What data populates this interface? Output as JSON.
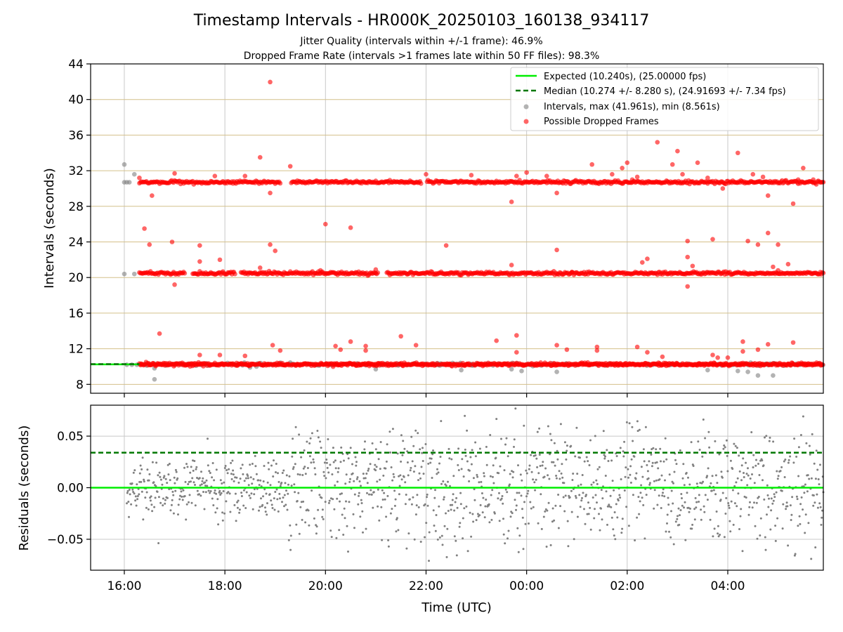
{
  "title": "Timestamp Intervals - HR000K_20250103_160138_934117",
  "subtitle_1": "Jitter Quality (intervals within +/-1 frame): 46.9%",
  "subtitle_2": "Dropped Frame Rate (intervals >1 frames late within 50 FF files): 98.3%",
  "colors": {
    "expected": "#00ee00",
    "median": "#007700",
    "intervals": "#808080",
    "dropped": "#ff0000",
    "gridline_intervals": "#d4c08a",
    "gridline_residuals": "#c8c8c8"
  },
  "chart_data": [
    {
      "type": "scatter",
      "panel": "intervals",
      "ylabel": "Intervals (seconds)",
      "ylim": [
        7,
        44
      ],
      "xlim_hours": [
        15.33,
        29.9
      ],
      "y_ticks": [
        "8",
        "12",
        "16",
        "20",
        "24",
        "28",
        "32",
        "36",
        "40",
        "44"
      ],
      "grid": "on",
      "legend_position": "top-right",
      "legend": [
        "Expected (10.240s), (25.00000 fps)",
        "Median (10.274 +/- 8.280 s), (24.91693 +/- 7.34 fps)",
        "Intervals, max (41.961s), min (8.561s)",
        "Possible Dropped Frames"
      ],
      "expected_value": 10.24,
      "median_value": 10.274,
      "bands": [
        10.24,
        20.48,
        30.72
      ],
      "series": [
        {
          "name": "Intervals, max (41.961s), min (8.561s)",
          "points": [
            [
              16.0,
              32.7
            ],
            [
              16.0,
              30.7
            ],
            [
              16.05,
              30.7
            ],
            [
              16.1,
              30.7
            ],
            [
              16.2,
              31.6
            ],
            [
              16.0,
              20.4
            ],
            [
              16.2,
              20.4
            ],
            [
              16.05,
              10.2
            ],
            [
              16.15,
              10.2
            ],
            [
              16.25,
              10.2
            ],
            [
              16.6,
              8.56
            ],
            [
              16.6,
              9.8
            ],
            [
              18.5,
              9.9
            ],
            [
              21.0,
              9.7
            ],
            [
              22.7,
              9.6
            ],
            [
              23.7,
              9.7
            ],
            [
              23.9,
              9.5
            ],
            [
              24.6,
              9.4
            ],
            [
              27.6,
              9.6
            ],
            [
              28.2,
              9.5
            ],
            [
              28.4,
              9.4
            ],
            [
              28.6,
              9.0
            ],
            [
              28.9,
              9.0
            ],
            [
              29.85,
              10.2
            ]
          ]
        },
        {
          "name": "Possible Dropped Frames",
          "points": [
            [
              16.3,
              31.2
            ],
            [
              16.4,
              25.5
            ],
            [
              16.5,
              23.7
            ],
            [
              16.55,
              29.2
            ],
            [
              16.7,
              13.7
            ],
            [
              16.95,
              24.0
            ],
            [
              17.0,
              19.2
            ],
            [
              17.0,
              31.7
            ],
            [
              17.5,
              23.6
            ],
            [
              17.5,
              21.8
            ],
            [
              17.5,
              11.3
            ],
            [
              17.9,
              22.0
            ],
            [
              17.9,
              11.3
            ],
            [
              17.8,
              31.4
            ],
            [
              18.4,
              31.4
            ],
            [
              18.4,
              11.2
            ],
            [
              18.7,
              33.5
            ],
            [
              18.7,
              21.1
            ],
            [
              18.9,
              41.96
            ],
            [
              18.9,
              29.5
            ],
            [
              18.9,
              23.7
            ],
            [
              18.95,
              12.4
            ],
            [
              19.0,
              23.0
            ],
            [
              19.1,
              11.8
            ],
            [
              19.3,
              32.5
            ],
            [
              19.9,
              20.8
            ],
            [
              20.0,
              26.0
            ],
            [
              20.2,
              12.3
            ],
            [
              20.3,
              11.9
            ],
            [
              20.5,
              25.6
            ],
            [
              20.5,
              12.8
            ],
            [
              20.8,
              12.3
            ],
            [
              20.8,
              11.8
            ],
            [
              21.0,
              20.9
            ],
            [
              21.5,
              13.4
            ],
            [
              21.8,
              12.4
            ],
            [
              22.0,
              31.6
            ],
            [
              22.4,
              23.6
            ],
            [
              22.9,
              31.5
            ],
            [
              23.4,
              12.9
            ],
            [
              23.7,
              28.5
            ],
            [
              23.7,
              21.4
            ],
            [
              23.8,
              31.4
            ],
            [
              23.8,
              13.5
            ],
            [
              23.8,
              11.6
            ],
            [
              24.0,
              31.8
            ],
            [
              24.4,
              31.4
            ],
            [
              24.6,
              29.5
            ],
            [
              24.6,
              23.1
            ],
            [
              24.6,
              12.4
            ],
            [
              24.8,
              11.9
            ],
            [
              24.9,
              20.6
            ],
            [
              25.3,
              32.7
            ],
            [
              25.4,
              12.2
            ],
            [
              25.4,
              11.8
            ],
            [
              25.7,
              31.6
            ],
            [
              25.9,
              32.3
            ],
            [
              26.0,
              32.9
            ],
            [
              26.1,
              31.0
            ],
            [
              26.2,
              12.2
            ],
            [
              26.2,
              31.3
            ],
            [
              26.3,
              21.7
            ],
            [
              26.4,
              22.1
            ],
            [
              26.4,
              11.6
            ],
            [
              26.6,
              35.2
            ],
            [
              26.7,
              11.1
            ],
            [
              26.9,
              32.7
            ],
            [
              27.0,
              34.2
            ],
            [
              27.1,
              31.6
            ],
            [
              27.2,
              24.1
            ],
            [
              27.2,
              22.3
            ],
            [
              27.2,
              19.0
            ],
            [
              27.3,
              21.3
            ],
            [
              27.4,
              32.9
            ],
            [
              27.6,
              31.2
            ],
            [
              27.7,
              24.3
            ],
            [
              27.7,
              11.3
            ],
            [
              27.8,
              11.0
            ],
            [
              27.9,
              30.0
            ],
            [
              28.0,
              11.0
            ],
            [
              28.2,
              34.0
            ],
            [
              28.3,
              12.8
            ],
            [
              28.3,
              11.7
            ],
            [
              28.4,
              24.1
            ],
            [
              28.5,
              31.6
            ],
            [
              28.6,
              23.7
            ],
            [
              28.6,
              11.9
            ],
            [
              28.7,
              31.3
            ],
            [
              28.8,
              12.5
            ],
            [
              28.8,
              25.0
            ],
            [
              28.8,
              29.2
            ],
            [
              28.9,
              21.2
            ],
            [
              29.0,
              23.7
            ],
            [
              29.0,
              20.8
            ],
            [
              29.2,
              21.5
            ],
            [
              29.3,
              12.7
            ],
            [
              29.3,
              28.3
            ],
            [
              29.5,
              32.3
            ],
            [
              29.4,
              31.0
            ],
            [
              29.7,
              31.0
            ]
          ]
        }
      ]
    },
    {
      "type": "scatter",
      "panel": "residuals",
      "xlabel": "Time (UTC)",
      "ylabel": "Residuals (seconds)",
      "ylim": [
        -0.08,
        0.08
      ],
      "y_ticks": [
        "0.05",
        "0.00",
        "−0.05"
      ],
      "x_ticks": [
        "16:00",
        "18:00",
        "20:00",
        "22:00",
        "00:00",
        "02:00",
        "04:00"
      ],
      "grid": "on",
      "expected_residual": 0.0,
      "median_band": 0.034,
      "series": [
        {
          "name": "Residuals",
          "description_stats": {
            "spread_early": 0.02,
            "spread_late": 0.04
          }
        }
      ]
    }
  ]
}
